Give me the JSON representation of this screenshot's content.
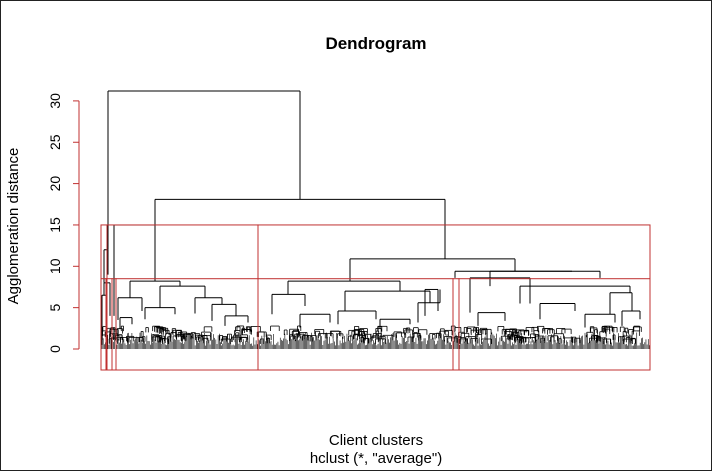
{
  "chart_data": {
    "type": "dendrogram",
    "title": "Dendrogram",
    "xlabel": "Client clusters",
    "sub": "hclust (*, \"average\")",
    "ylabel": "Agglomeration distance",
    "ylim": [
      0,
      32
    ],
    "yticks": [
      0,
      5,
      10,
      15,
      20,
      25,
      30
    ],
    "axis_color": "#c03030",
    "leaf_count_approx": 2400,
    "merges": [
      {
        "height": 31.2,
        "note": "root: outlier group vs rest"
      },
      {
        "height": 18.1,
        "note": "left large group vs right group"
      },
      {
        "height": 15.0,
        "note": "small left branch"
      },
      {
        "height": 12.0,
        "note": "leftmost outlier branch"
      },
      {
        "height": 10.9,
        "note": "middle block vs right block"
      },
      {
        "height": 9.4,
        "note": "right block subgroups"
      },
      {
        "height": 8.2,
        "note": "left-center block"
      },
      {
        "height": 8.2,
        "note": "middle block"
      },
      {
        "height": 7.6,
        "note": "right block main"
      }
    ],
    "cut_lines": [
      {
        "height": 15,
        "clusters": 3,
        "color": "#c03030"
      },
      {
        "height": 8.5,
        "clusters": 7,
        "color": "#c03030"
      }
    ]
  }
}
